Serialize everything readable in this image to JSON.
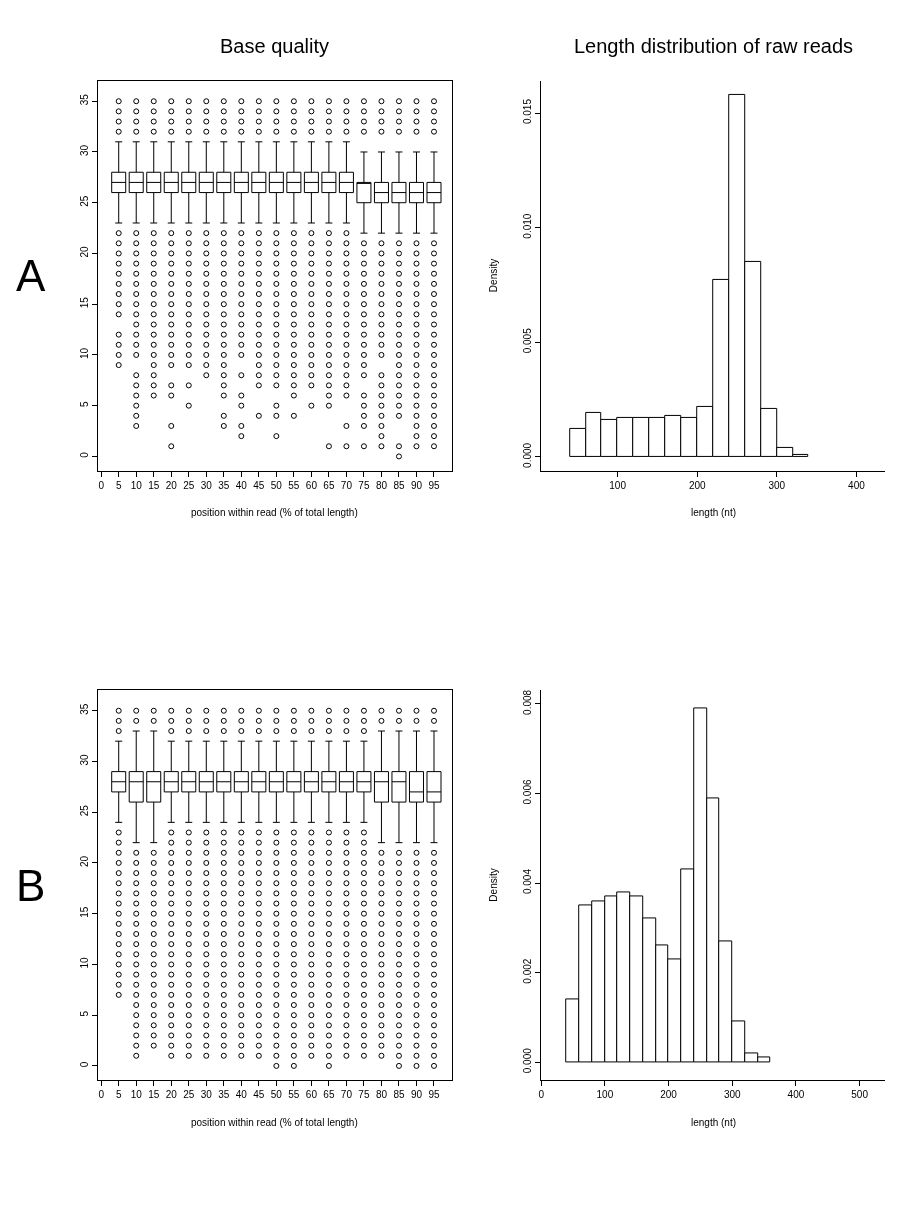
{
  "chart_data": [
    {
      "type": "histogram",
      "title": "Length distribution of raw reads",
      "xlabel": "length (nt)",
      "ylabel": "Density",
      "color": "#ffffff",
      "bins": [
        40,
        60,
        80,
        100,
        120,
        140,
        160,
        180,
        200,
        220,
        240,
        260,
        280,
        300,
        320,
        340
      ],
      "values": [
        0.0012,
        0.0019,
        0.0016,
        0.0017,
        0.0017,
        0.0017,
        0.0018,
        0.0017,
        0.0022,
        0.0077,
        0.0158,
        0.0085,
        0.0021,
        0.0004,
        0.0001
      ],
      "xlim": [
        4,
        436
      ],
      "xticks": [
        100,
        200,
        300,
        400
      ],
      "ylim": [
        -0.0006,
        0.0164
      ],
      "yticks": [
        {
          "value": 0,
          "label": "0.000"
        },
        {
          "value": 0.005,
          "label": "0.005"
        },
        {
          "value": 0.01,
          "label": "0.010"
        },
        {
          "value": 0.015,
          "label": "0.015"
        }
      ]
    },
    {
      "type": "histogram",
      "xlabel": "length (nt)",
      "ylabel": "Density",
      "color": "#ffffff",
      "bins": [
        40,
        60,
        80,
        100,
        120,
        140,
        160,
        180,
        200,
        220,
        240,
        260,
        280,
        300,
        320,
        340,
        360
      ],
      "values": [
        0.0014,
        0.0035,
        0.0036,
        0.0037,
        0.0038,
        0.0037,
        0.0032,
        0.0026,
        0.0023,
        0.0043,
        0.0079,
        0.0059,
        0.0027,
        0.0009,
        0.0002,
        0.0001
      ],
      "xlim": [
        0,
        540
      ],
      "xticks": [
        0,
        100,
        200,
        300,
        400,
        500
      ],
      "ylim": [
        -0.0004,
        0.0083
      ],
      "yticks": [
        {
          "value": 0,
          "label": "0.000"
        },
        {
          "value": 0.002,
          "label": "0.002"
        },
        {
          "value": 0.004,
          "label": "0.004"
        },
        {
          "value": 0.006,
          "label": "0.006"
        },
        {
          "value": 0.008,
          "label": "0.008"
        }
      ]
    },
    {
      "type": "box",
      "title": "Base quality",
      "xlabel": "position within read (% of total length)",
      "color": "#000000",
      "marker": "circle",
      "annotations": [
        "A"
      ],
      "x": [
        5,
        10,
        15,
        20,
        25,
        30,
        35,
        40,
        45,
        50,
        55,
        60,
        65,
        70,
        75,
        80,
        85,
        90,
        95
      ],
      "boxes": [
        {
          "low": 23,
          "q1": 26,
          "median": 27,
          "q3": 28,
          "high": 31,
          "outliers": [
            35,
            34,
            33,
            32,
            22,
            21,
            20,
            19,
            18,
            17,
            16,
            15,
            14,
            12,
            11,
            10,
            9
          ]
        },
        {
          "low": 23,
          "q1": 26,
          "median": 27,
          "q3": 28,
          "high": 31,
          "outliers": [
            35,
            34,
            33,
            32,
            22,
            21,
            20,
            19,
            18,
            17,
            16,
            15,
            14,
            13,
            12,
            11,
            10,
            8,
            7,
            6,
            5,
            4,
            3
          ]
        },
        {
          "low": 23,
          "q1": 26,
          "median": 27,
          "q3": 28,
          "high": 31,
          "outliers": [
            35,
            34,
            33,
            32,
            22,
            21,
            20,
            19,
            18,
            17,
            16,
            15,
            14,
            13,
            12,
            11,
            10,
            9,
            8,
            7,
            6
          ]
        },
        {
          "low": 23,
          "q1": 26,
          "median": 27,
          "q3": 28,
          "high": 31,
          "outliers": [
            35,
            34,
            33,
            32,
            22,
            21,
            20,
            19,
            18,
            17,
            16,
            15,
            14,
            13,
            12,
            11,
            10,
            9,
            7,
            6,
            3,
            1
          ]
        },
        {
          "low": 23,
          "q1": 26,
          "median": 27,
          "q3": 28,
          "high": 31,
          "outliers": [
            35,
            34,
            33,
            32,
            22,
            21,
            20,
            19,
            18,
            17,
            16,
            15,
            14,
            13,
            12,
            11,
            10,
            9,
            7,
            5
          ]
        },
        {
          "low": 23,
          "q1": 26,
          "median": 27,
          "q3": 28,
          "high": 31,
          "outliers": [
            35,
            34,
            33,
            32,
            22,
            21,
            20,
            19,
            18,
            17,
            16,
            15,
            14,
            13,
            12,
            11,
            10,
            9,
            8
          ]
        },
        {
          "low": 23,
          "q1": 26,
          "median": 27,
          "q3": 28,
          "high": 31,
          "outliers": [
            35,
            34,
            33,
            32,
            22,
            21,
            20,
            19,
            18,
            17,
            16,
            15,
            14,
            13,
            12,
            11,
            10,
            9,
            8,
            7,
            6,
            4,
            3
          ]
        },
        {
          "low": 23,
          "q1": 26,
          "median": 27,
          "q3": 28,
          "high": 31,
          "outliers": [
            35,
            34,
            33,
            32,
            22,
            21,
            20,
            19,
            18,
            17,
            16,
            15,
            14,
            13,
            12,
            11,
            10,
            8,
            6,
            5,
            3,
            2
          ]
        },
        {
          "low": 23,
          "q1": 26,
          "median": 27,
          "q3": 28,
          "high": 31,
          "outliers": [
            35,
            34,
            33,
            32,
            22,
            21,
            20,
            19,
            18,
            17,
            16,
            15,
            14,
            13,
            12,
            11,
            10,
            9,
            8,
            7,
            4
          ]
        },
        {
          "low": 23,
          "q1": 26,
          "median": 27,
          "q3": 28,
          "high": 31,
          "outliers": [
            35,
            34,
            33,
            32,
            22,
            21,
            20,
            19,
            18,
            17,
            16,
            15,
            14,
            13,
            12,
            11,
            10,
            9,
            8,
            7,
            5,
            4,
            2
          ]
        },
        {
          "low": 23,
          "q1": 26,
          "median": 27,
          "q3": 28,
          "high": 31,
          "outliers": [
            35,
            34,
            33,
            32,
            22,
            21,
            20,
            19,
            18,
            17,
            16,
            15,
            14,
            13,
            12,
            11,
            10,
            9,
            8,
            7,
            6,
            4
          ]
        },
        {
          "low": 23,
          "q1": 26,
          "median": 27,
          "q3": 28,
          "high": 31,
          "outliers": [
            35,
            34,
            33,
            32,
            22,
            21,
            20,
            19,
            18,
            17,
            16,
            15,
            14,
            13,
            12,
            11,
            10,
            9,
            8,
            7,
            5
          ]
        },
        {
          "low": 23,
          "q1": 26,
          "median": 27,
          "q3": 28,
          "high": 31,
          "outliers": [
            35,
            34,
            33,
            32,
            22,
            21,
            20,
            19,
            18,
            17,
            16,
            15,
            14,
            13,
            12,
            11,
            10,
            9,
            8,
            7,
            6,
            5,
            1
          ]
        },
        {
          "low": 23,
          "q1": 26,
          "median": 27,
          "q3": 28,
          "high": 31,
          "outliers": [
            35,
            34,
            33,
            32,
            22,
            21,
            20,
            19,
            18,
            17,
            16,
            15,
            14,
            13,
            12,
            11,
            10,
            9,
            8,
            7,
            6,
            3,
            1
          ]
        },
        {
          "low": 22,
          "q1": 25,
          "median": 27,
          "q3": 27,
          "high": 30,
          "outliers": [
            35,
            34,
            33,
            32,
            21,
            20,
            19,
            18,
            17,
            16,
            15,
            14,
            13,
            12,
            11,
            10,
            9,
            8,
            6,
            5,
            4,
            3,
            1
          ]
        },
        {
          "low": 22,
          "q1": 25,
          "median": 26,
          "q3": 27,
          "high": 30,
          "outliers": [
            35,
            34,
            33,
            32,
            21,
            20,
            19,
            18,
            17,
            16,
            15,
            14,
            13,
            12,
            11,
            10,
            8,
            7,
            6,
            5,
            4,
            3,
            2,
            1
          ]
        },
        {
          "low": 22,
          "q1": 25,
          "median": 26,
          "q3": 27,
          "high": 30,
          "outliers": [
            35,
            34,
            33,
            32,
            21,
            20,
            19,
            18,
            17,
            16,
            15,
            14,
            13,
            12,
            11,
            10,
            9,
            8,
            7,
            6,
            5,
            4,
            1,
            0
          ]
        },
        {
          "low": 22,
          "q1": 25,
          "median": 26,
          "q3": 27,
          "high": 30,
          "outliers": [
            35,
            34,
            33,
            32,
            21,
            20,
            19,
            18,
            17,
            16,
            15,
            14,
            13,
            12,
            11,
            10,
            9,
            8,
            7,
            6,
            5,
            4,
            3,
            2,
            1
          ]
        },
        {
          "low": 22,
          "q1": 25,
          "median": 26,
          "q3": 27,
          "high": 30,
          "outliers": [
            35,
            34,
            33,
            32,
            21,
            20,
            19,
            18,
            17,
            16,
            15,
            14,
            13,
            12,
            11,
            10,
            9,
            8,
            7,
            6,
            5,
            4,
            3,
            2,
            1
          ]
        }
      ],
      "xlim": [
        -1,
        100
      ],
      "xticks": [
        0,
        5,
        10,
        15,
        20,
        25,
        30,
        35,
        40,
        45,
        50,
        55,
        60,
        65,
        70,
        75,
        80,
        85,
        90,
        95
      ],
      "ylim": [
        -1.4,
        37
      ],
      "yticks": [
        0,
        5,
        10,
        15,
        20,
        25,
        30,
        35
      ]
    },
    {
      "type": "box",
      "xlabel": "position within read (% of total length)",
      "color": "#000000",
      "marker": "circle",
      "annotations": [
        "B"
      ],
      "x": [
        5,
        10,
        15,
        20,
        25,
        30,
        35,
        40,
        45,
        50,
        55,
        60,
        65,
        70,
        75,
        80,
        85,
        90,
        95
      ],
      "boxes": [
        {
          "low": 24,
          "q1": 27,
          "median": 28,
          "q3": 29,
          "high": 32,
          "outliers": [
            35,
            34,
            33,
            23,
            22,
            21,
            20,
            19,
            18,
            17,
            16,
            15,
            14,
            13,
            12,
            11,
            10,
            9,
            8,
            7
          ]
        },
        {
          "low": 22,
          "q1": 26,
          "median": 28,
          "q3": 29,
          "high": 33,
          "outliers": [
            35,
            34,
            21,
            20,
            19,
            18,
            17,
            16,
            15,
            14,
            13,
            12,
            11,
            10,
            9,
            8,
            7,
            6,
            5,
            4,
            3,
            2,
            1
          ]
        },
        {
          "low": 22,
          "q1": 26,
          "median": 28,
          "q3": 29,
          "high": 33,
          "outliers": [
            35,
            34,
            21,
            20,
            19,
            18,
            17,
            16,
            15,
            14,
            13,
            12,
            11,
            10,
            9,
            8,
            7,
            6,
            5,
            4,
            3,
            2
          ]
        },
        {
          "low": 24,
          "q1": 27,
          "median": 28,
          "q3": 29,
          "high": 32,
          "outliers": [
            35,
            34,
            33,
            23,
            22,
            21,
            20,
            19,
            18,
            17,
            16,
            15,
            14,
            13,
            12,
            11,
            10,
            9,
            8,
            7,
            6,
            5,
            4,
            3,
            2,
            1
          ]
        },
        {
          "low": 24,
          "q1": 27,
          "median": 28,
          "q3": 29,
          "high": 32,
          "outliers": [
            35,
            34,
            33,
            23,
            22,
            21,
            20,
            19,
            18,
            17,
            16,
            15,
            14,
            13,
            12,
            11,
            10,
            9,
            8,
            7,
            6,
            5,
            4,
            3,
            2,
            1
          ]
        },
        {
          "low": 24,
          "q1": 27,
          "median": 28,
          "q3": 29,
          "high": 32,
          "outliers": [
            35,
            34,
            33,
            23,
            22,
            21,
            20,
            19,
            18,
            17,
            16,
            15,
            14,
            13,
            12,
            11,
            10,
            9,
            8,
            7,
            6,
            5,
            4,
            3,
            2,
            1
          ]
        },
        {
          "low": 24,
          "q1": 27,
          "median": 28,
          "q3": 29,
          "high": 32,
          "outliers": [
            35,
            34,
            33,
            23,
            22,
            21,
            20,
            19,
            18,
            17,
            16,
            15,
            14,
            13,
            12,
            11,
            10,
            9,
            8,
            7,
            6,
            5,
            4,
            3,
            2,
            1
          ]
        },
        {
          "low": 24,
          "q1": 27,
          "median": 28,
          "q3": 29,
          "high": 32,
          "outliers": [
            35,
            34,
            33,
            23,
            22,
            21,
            20,
            19,
            18,
            17,
            16,
            15,
            14,
            13,
            12,
            11,
            10,
            9,
            8,
            7,
            6,
            5,
            4,
            3,
            2,
            1
          ]
        },
        {
          "low": 24,
          "q1": 27,
          "median": 28,
          "q3": 29,
          "high": 32,
          "outliers": [
            35,
            34,
            33,
            23,
            22,
            21,
            20,
            19,
            18,
            17,
            16,
            15,
            14,
            13,
            12,
            11,
            10,
            9,
            8,
            7,
            6,
            5,
            4,
            3,
            2,
            1
          ]
        },
        {
          "low": 24,
          "q1": 27,
          "median": 28,
          "q3": 29,
          "high": 32,
          "outliers": [
            35,
            34,
            33,
            23,
            22,
            21,
            20,
            19,
            18,
            17,
            16,
            15,
            14,
            13,
            12,
            11,
            10,
            9,
            8,
            7,
            6,
            5,
            4,
            3,
            2,
            1,
            0
          ]
        },
        {
          "low": 24,
          "q1": 27,
          "median": 28,
          "q3": 29,
          "high": 32,
          "outliers": [
            35,
            34,
            33,
            23,
            22,
            21,
            20,
            19,
            18,
            17,
            16,
            15,
            14,
            13,
            12,
            11,
            10,
            9,
            8,
            7,
            6,
            5,
            4,
            3,
            2,
            1,
            0
          ]
        },
        {
          "low": 24,
          "q1": 27,
          "median": 28,
          "q3": 29,
          "high": 32,
          "outliers": [
            35,
            34,
            33,
            23,
            22,
            21,
            20,
            19,
            18,
            17,
            16,
            15,
            14,
            13,
            12,
            11,
            10,
            9,
            8,
            7,
            6,
            5,
            4,
            3,
            2,
            1
          ]
        },
        {
          "low": 24,
          "q1": 27,
          "median": 28,
          "q3": 29,
          "high": 32,
          "outliers": [
            35,
            34,
            33,
            23,
            22,
            21,
            20,
            19,
            18,
            17,
            16,
            15,
            14,
            13,
            12,
            11,
            10,
            9,
            8,
            7,
            6,
            5,
            4,
            3,
            2,
            1,
            0
          ]
        },
        {
          "low": 24,
          "q1": 27,
          "median": 28,
          "q3": 29,
          "high": 32,
          "outliers": [
            35,
            34,
            33,
            23,
            22,
            21,
            20,
            19,
            18,
            17,
            16,
            15,
            14,
            13,
            12,
            11,
            10,
            9,
            8,
            7,
            6,
            5,
            4,
            3,
            2,
            1
          ]
        },
        {
          "low": 24,
          "q1": 27,
          "median": 28,
          "q3": 29,
          "high": 32,
          "outliers": [
            35,
            34,
            33,
            23,
            22,
            21,
            20,
            19,
            18,
            17,
            16,
            15,
            14,
            13,
            12,
            11,
            10,
            9,
            8,
            7,
            6,
            5,
            4,
            3,
            2,
            1
          ]
        },
        {
          "low": 22,
          "q1": 26,
          "median": 28,
          "q3": 29,
          "high": 33,
          "outliers": [
            35,
            34,
            21,
            20,
            19,
            18,
            17,
            16,
            15,
            14,
            13,
            12,
            11,
            10,
            9,
            8,
            7,
            6,
            5,
            4,
            3,
            2,
            1
          ]
        },
        {
          "low": 22,
          "q1": 26,
          "median": 28,
          "q3": 29,
          "high": 33,
          "outliers": [
            35,
            34,
            21,
            20,
            19,
            18,
            17,
            16,
            15,
            14,
            13,
            12,
            11,
            10,
            9,
            8,
            7,
            6,
            5,
            4,
            3,
            2,
            1,
            0
          ]
        },
        {
          "low": 22,
          "q1": 26,
          "median": 27,
          "q3": 29,
          "high": 33,
          "outliers": [
            35,
            34,
            21,
            20,
            19,
            18,
            17,
            16,
            15,
            14,
            13,
            12,
            11,
            10,
            9,
            8,
            7,
            6,
            5,
            4,
            3,
            2,
            1,
            0
          ]
        },
        {
          "low": 22,
          "q1": 26,
          "median": 27,
          "q3": 29,
          "high": 33,
          "outliers": [
            35,
            34,
            21,
            20,
            19,
            18,
            17,
            16,
            15,
            14,
            13,
            12,
            11,
            10,
            9,
            8,
            7,
            6,
            5,
            4,
            3,
            2,
            1,
            0
          ]
        }
      ],
      "xlim": [
        -1,
        100
      ],
      "xticks": [
        0,
        5,
        10,
        15,
        20,
        25,
        30,
        35,
        40,
        45,
        50,
        55,
        60,
        65,
        70,
        75,
        80,
        85,
        90,
        95
      ],
      "ylim": [
        -1.4,
        37
      ],
      "yticks": [
        0,
        5,
        10,
        15,
        20,
        25,
        30,
        35
      ]
    }
  ]
}
